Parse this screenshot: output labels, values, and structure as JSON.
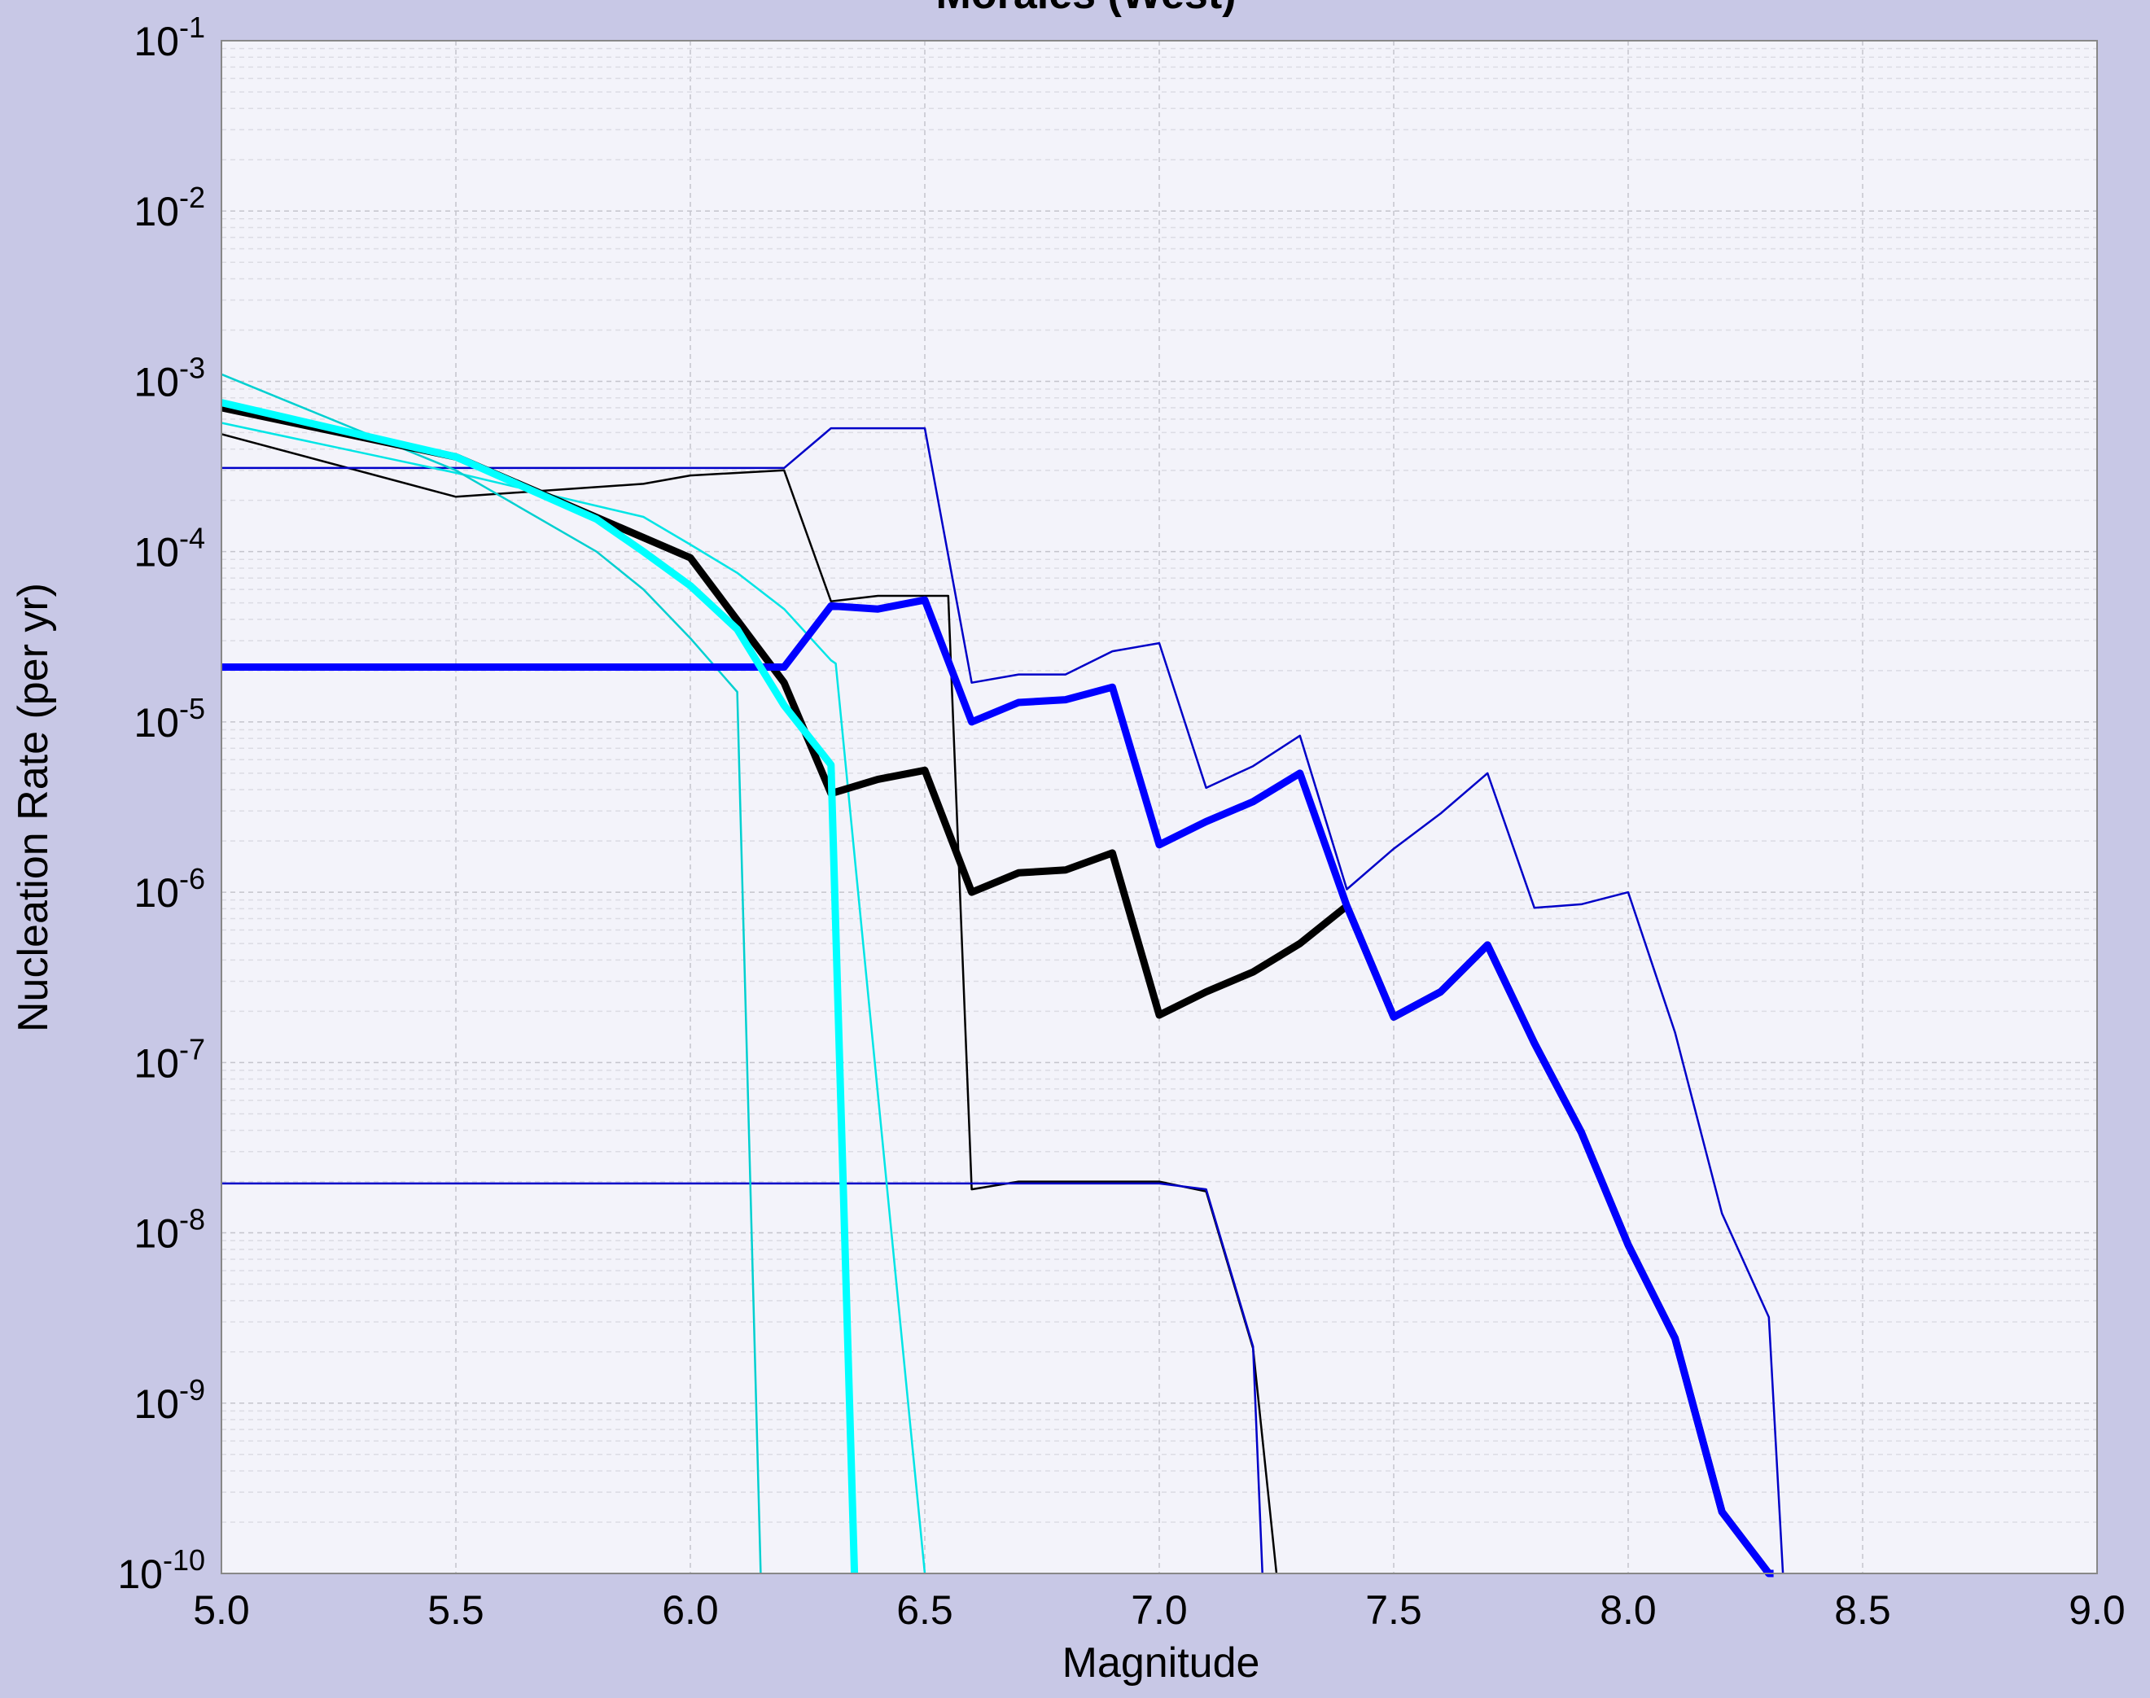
{
  "chart_data": {
    "type": "line",
    "title": "Morales (West)",
    "xlabel": "Magnitude",
    "ylabel": "Nucleation Rate (per yr)",
    "xlim": [
      5.0,
      9.0
    ],
    "ylim": [
      1e-10,
      0.1
    ],
    "yscale": "log",
    "grid": true,
    "xticks": [
      "5.0",
      "5.5",
      "6.0",
      "6.5",
      "7.0",
      "7.5",
      "8.0",
      "8.5",
      "9.0"
    ],
    "yticks": [
      {
        "base": "10",
        "exp": "-1"
      },
      {
        "base": "10",
        "exp": "-2"
      },
      {
        "base": "10",
        "exp": "-3"
      },
      {
        "base": "10",
        "exp": "-4"
      },
      {
        "base": "10",
        "exp": "-5"
      },
      {
        "base": "10",
        "exp": "-6"
      },
      {
        "base": "10",
        "exp": "-7"
      },
      {
        "base": "10",
        "exp": "-8"
      },
      {
        "base": "10",
        "exp": "-9"
      },
      {
        "base": "10",
        "exp": "-10"
      }
    ],
    "series": [
      {
        "color": "#000000",
        "width": "thick",
        "points": [
          [
            5.0,
            0.0007
          ],
          [
            5.5,
            0.00036
          ],
          [
            6.0,
            9.2e-05
          ],
          [
            6.2,
            1.7e-05
          ],
          [
            6.3,
            3.8e-06
          ],
          [
            6.4,
            4.6e-06
          ],
          [
            6.5,
            5.2e-06
          ],
          [
            6.6,
            1e-06
          ],
          [
            6.7,
            1.3e-06
          ],
          [
            6.8,
            1.35e-06
          ],
          [
            6.9,
            1.7e-06
          ],
          [
            7.0,
            1.9e-07
          ],
          [
            7.1,
            2.6e-07
          ],
          [
            7.2,
            3.4e-07
          ],
          [
            7.3,
            5e-07
          ],
          [
            7.4,
            8.3e-07
          ],
          [
            7.5,
            1.85e-07
          ],
          [
            7.6,
            2.6e-07
          ],
          [
            7.7,
            4.9e-07
          ],
          [
            7.8,
            1.3e-07
          ],
          [
            7.9,
            3.9e-08
          ],
          [
            8.0,
            8.5e-09
          ],
          [
            8.1,
            2.4e-09
          ],
          [
            8.2,
            2.3e-10
          ],
          [
            8.3,
            5.6e-11
          ]
        ]
      },
      {
        "color": "#000000",
        "width": "thin",
        "points": [
          [
            5.0,
            0.00049
          ],
          [
            5.5,
            0.00021
          ],
          [
            5.9,
            0.00025
          ],
          [
            6.0,
            0.00028
          ],
          [
            6.2,
            0.0003
          ],
          [
            6.3,
            5.1e-05
          ],
          [
            6.4,
            5.5e-05
          ],
          [
            6.5,
            5.5e-05
          ],
          [
            6.55,
            5.5e-05
          ],
          [
            6.6,
            1.8e-08
          ],
          [
            6.7,
            2e-08
          ],
          [
            6.8,
            2e-08
          ],
          [
            6.9,
            2e-08
          ],
          [
            7.0,
            2e-08
          ],
          [
            7.1,
            1.75e-08
          ],
          [
            7.2,
            2.1e-09
          ],
          [
            7.25,
            1e-10
          ]
        ]
      },
      {
        "color": "#0000ff",
        "width": "thick",
        "points": [
          [
            5.0,
            2.1e-05
          ],
          [
            6.2,
            2.1e-05
          ],
          [
            6.3,
            4.8e-05
          ],
          [
            6.4,
            4.6e-05
          ],
          [
            6.5,
            5.2e-05
          ],
          [
            6.6,
            1e-05
          ],
          [
            6.7,
            1.3e-05
          ],
          [
            6.8,
            1.35e-05
          ],
          [
            6.9,
            1.6e-05
          ],
          [
            7.0,
            1.9e-06
          ],
          [
            7.1,
            2.6e-06
          ],
          [
            7.2,
            3.4e-06
          ],
          [
            7.3,
            5e-06
          ],
          [
            7.4,
            8.3e-07
          ],
          [
            7.5,
            1.85e-07
          ],
          [
            7.6,
            2.6e-07
          ],
          [
            7.7,
            4.9e-07
          ],
          [
            7.8,
            1.3e-07
          ],
          [
            7.9,
            3.9e-08
          ],
          [
            8.0,
            8.5e-09
          ],
          [
            8.1,
            2.4e-09
          ],
          [
            8.2,
            2.3e-10
          ],
          [
            8.3,
            5.6e-11
          ],
          [
            8.31,
            1e-10
          ]
        ]
      },
      {
        "color": "#0000c8",
        "width": "thin",
        "points": [
          [
            5.0,
            0.00031
          ],
          [
            6.2,
            0.00031
          ],
          [
            6.3,
            0.00053
          ],
          [
            6.4,
            0.00053
          ],
          [
            6.5,
            0.00053
          ],
          [
            6.6,
            1.7e-05
          ],
          [
            6.7,
            1.9e-05
          ],
          [
            6.8,
            1.9e-05
          ],
          [
            6.9,
            2.6e-05
          ],
          [
            7.0,
            2.9e-05
          ],
          [
            7.1,
            4.1e-06
          ],
          [
            7.2,
            5.5e-06
          ],
          [
            7.3,
            8.3e-06
          ],
          [
            7.4,
            1.04e-06
          ],
          [
            7.5,
            1.8e-06
          ],
          [
            7.6,
            2.9e-06
          ],
          [
            7.7,
            5e-06
          ],
          [
            7.8,
            8.1e-07
          ],
          [
            7.9,
            8.5e-07
          ],
          [
            8.0,
            1e-06
          ],
          [
            8.1,
            1.5e-07
          ],
          [
            8.2,
            1.3e-08
          ],
          [
            8.3,
            3.2e-09
          ],
          [
            8.33,
            1e-10
          ]
        ]
      },
      {
        "color": "#0000c8",
        "width": "thin",
        "points": [
          [
            5.0,
            1.95e-08
          ],
          [
            6.0,
            1.95e-08
          ],
          [
            7.0,
            1.95e-08
          ],
          [
            7.1,
            1.8e-08
          ],
          [
            7.2,
            2.15e-09
          ],
          [
            7.22,
            1e-10
          ]
        ]
      },
      {
        "color": "#00ffff",
        "width": "thick",
        "points": [
          [
            5.0,
            0.00075
          ],
          [
            5.5,
            0.00036
          ],
          [
            5.8,
            0.000155
          ],
          [
            5.9,
            0.0001
          ],
          [
            6.0,
            6.3e-05
          ],
          [
            6.1,
            3.5e-05
          ],
          [
            6.2,
            1.25e-05
          ],
          [
            6.3,
            5.6e-06
          ],
          [
            6.35,
            1e-10
          ]
        ]
      },
      {
        "color": "#00e5e5",
        "width": "thin",
        "points": [
          [
            5.0,
            0.00057
          ],
          [
            5.5,
            0.00029
          ],
          [
            5.9,
            0.00016
          ],
          [
            6.0,
            0.00011
          ],
          [
            6.1,
            7.5e-05
          ],
          [
            6.2,
            4.6e-05
          ],
          [
            6.3,
            2.3e-05
          ],
          [
            6.31,
            2.2e-05
          ],
          [
            6.5,
            1e-10
          ]
        ]
      },
      {
        "color": "#00d0d0",
        "width": "thin",
        "points": [
          [
            5.0,
            0.0011
          ],
          [
            5.5,
            0.0003
          ],
          [
            5.8,
            0.0001
          ],
          [
            5.9,
            6e-05
          ],
          [
            6.0,
            3.1e-05
          ],
          [
            6.1,
            1.5e-05
          ],
          [
            6.15,
            1e-10
          ]
        ]
      }
    ]
  }
}
